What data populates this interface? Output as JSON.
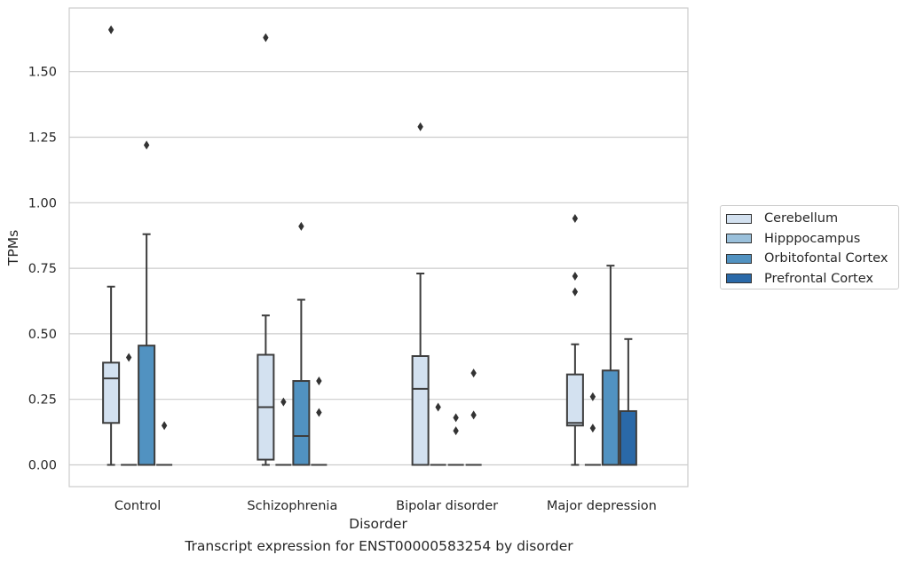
{
  "chart_data": {
    "type": "box",
    "xlabel": "Disorder",
    "ylabel": "TPMs",
    "categories": [
      "Control",
      "Schizophrenia",
      "Bipolar disorder",
      "Major depression"
    ],
    "ylim": [
      -0.08,
      1.74
    ],
    "yticks": [
      "0.00",
      "0.25",
      "0.50",
      "0.75",
      "1.00",
      "1.25",
      "1.50"
    ],
    "grid": true,
    "legend_position": "right",
    "series": [
      {
        "name": "Cerebellum",
        "color": "#d3e1f0",
        "boxes": [
          {
            "q1": 0.16,
            "median": 0.33,
            "q3": 0.39,
            "whisker_low": 0.0,
            "whisker_high": 0.68,
            "outliers": [
              1.66
            ]
          },
          {
            "q1": 0.02,
            "median": 0.22,
            "q3": 0.42,
            "whisker_low": 0.0,
            "whisker_high": 0.57,
            "outliers": [
              1.63
            ]
          },
          {
            "q1": 0.0,
            "median": 0.29,
            "q3": 0.415,
            "whisker_low": 0.0,
            "whisker_high": 0.73,
            "outliers": [
              1.29
            ]
          },
          {
            "q1": 0.15,
            "median": 0.16,
            "q3": 0.345,
            "whisker_low": 0.0,
            "whisker_high": 0.46,
            "outliers": [
              0.66,
              0.72,
              0.94
            ]
          }
        ]
      },
      {
        "name": "Hipppocampus",
        "color": "#9ac0db",
        "boxes": [
          {
            "q1": 0.0,
            "median": 0.0,
            "q3": 0.0,
            "whisker_low": 0.0,
            "whisker_high": 0.0,
            "outliers": [
              0.41
            ]
          },
          {
            "q1": 0.0,
            "median": 0.0,
            "q3": 0.0,
            "whisker_low": 0.0,
            "whisker_high": 0.0,
            "outliers": [
              0.24
            ]
          },
          {
            "q1": 0.0,
            "median": 0.0,
            "q3": 0.0,
            "whisker_low": 0.0,
            "whisker_high": 0.0,
            "outliers": [
              0.22
            ]
          },
          {
            "q1": 0.0,
            "median": 0.0,
            "q3": 0.0,
            "whisker_low": 0.0,
            "whisker_high": 0.0,
            "outliers": [
              0.14,
              0.26
            ]
          }
        ]
      },
      {
        "name": "Orbitofontal Cortex",
        "color": "#5192c1",
        "boxes": [
          {
            "q1": 0.0,
            "median": 0.0,
            "q3": 0.455,
            "whisker_low": 0.0,
            "whisker_high": 0.88,
            "outliers": [
              1.22
            ]
          },
          {
            "q1": 0.0,
            "median": 0.11,
            "q3": 0.32,
            "whisker_low": 0.0,
            "whisker_high": 0.63,
            "outliers": [
              0.91
            ]
          },
          {
            "q1": 0.0,
            "median": 0.0,
            "q3": 0.0,
            "whisker_low": 0.0,
            "whisker_high": 0.0,
            "outliers": [
              0.13,
              0.18
            ]
          },
          {
            "q1": 0.0,
            "median": 0.0,
            "q3": 0.36,
            "whisker_low": 0.0,
            "whisker_high": 0.76,
            "outliers": []
          }
        ]
      },
      {
        "name": "Prefrontal Cortex",
        "color": "#2a69a8",
        "boxes": [
          {
            "q1": 0.0,
            "median": 0.0,
            "q3": 0.0,
            "whisker_low": 0.0,
            "whisker_high": 0.0,
            "outliers": [
              0.15
            ]
          },
          {
            "q1": 0.0,
            "median": 0.0,
            "q3": 0.0,
            "whisker_low": 0.0,
            "whisker_high": 0.0,
            "outliers": [
              0.2,
              0.32
            ]
          },
          {
            "q1": 0.0,
            "median": 0.0,
            "q3": 0.0,
            "whisker_low": 0.0,
            "whisker_high": 0.0,
            "outliers": [
              0.19,
              0.35
            ]
          },
          {
            "q1": 0.0,
            "median": 0.0,
            "q3": 0.205,
            "whisker_low": 0.0,
            "whisker_high": 0.48,
            "outliers": []
          }
        ]
      }
    ]
  },
  "caption": "Transcript expression for ENST00000583254 by disorder"
}
